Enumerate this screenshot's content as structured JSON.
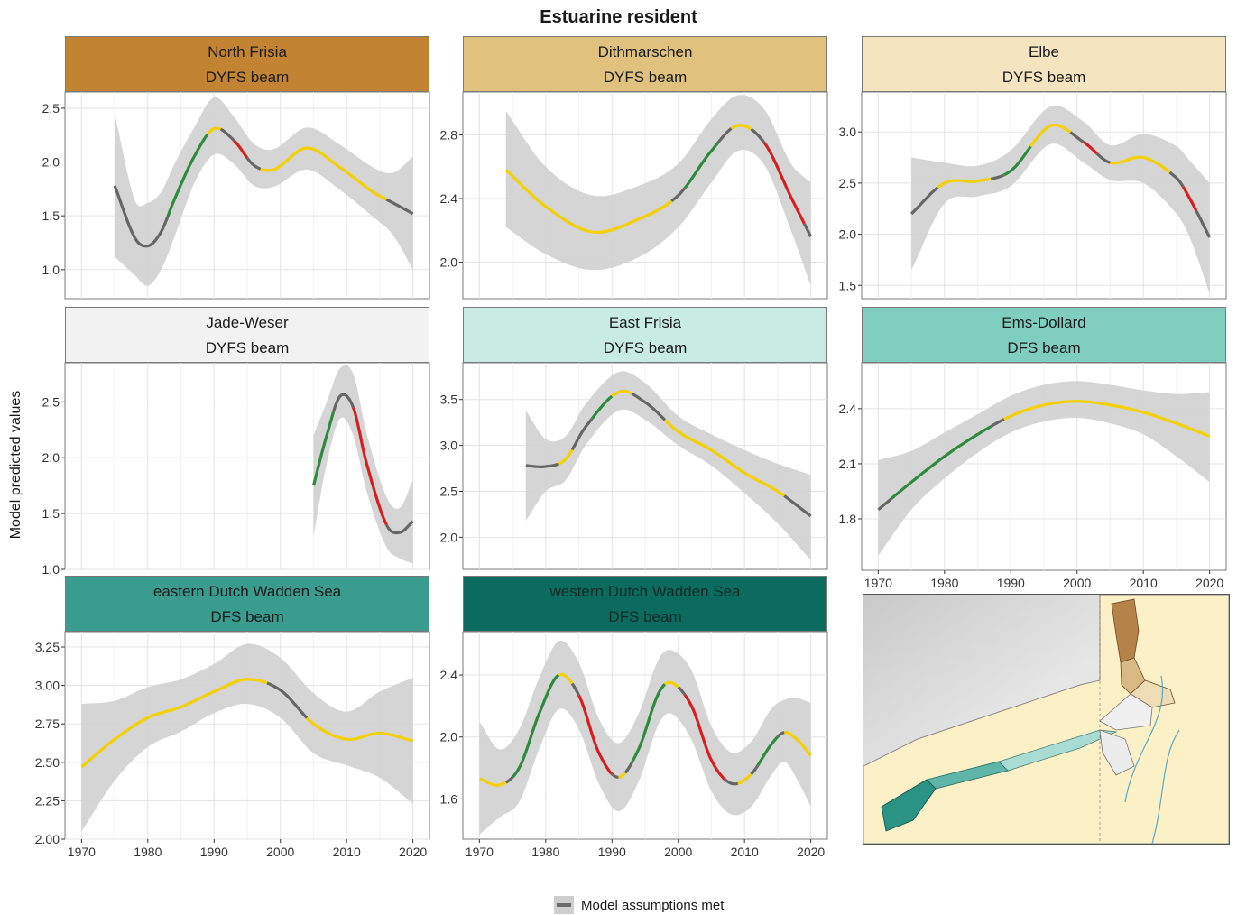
{
  "figure": {
    "title": "Estuarine resident",
    "ylabel": "Model predicted values",
    "legend_label": "Model assumptions met",
    "colors": {
      "met": "#666666",
      "ribbon": "#d0d0d0",
      "yellow": "#f5d000",
      "green": "#2e8b3e",
      "red": "#d42020"
    }
  },
  "chart_data": [
    {
      "type": "line",
      "area": "North Frisia",
      "survey": "DYFS beam",
      "strip_color": "#c28332",
      "x_ticks": [],
      "y_ticks": [
        1.0,
        1.5,
        2.0,
        2.5
      ],
      "y_tick_labels": [
        "1.0",
        "1.5",
        "2.0",
        "2.5"
      ],
      "xlim": [
        1967.5,
        2022.5
      ],
      "ylim": [
        0.73,
        2.65
      ],
      "x": [
        1975,
        1978,
        1980,
        1982,
        1984,
        1987,
        1990,
        1993,
        1996,
        1999,
        2004,
        2009,
        2014,
        2017,
        2020
      ],
      "fit": [
        1.78,
        1.3,
        1.22,
        1.35,
        1.65,
        2.05,
        2.31,
        2.2,
        1.97,
        1.93,
        2.13,
        1.95,
        1.72,
        1.62,
        1.52
      ],
      "lower": [
        1.12,
        0.95,
        0.85,
        1.0,
        1.3,
        1.8,
        2.07,
        1.98,
        1.78,
        1.77,
        1.93,
        1.74,
        1.49,
        1.32,
        1.0
      ],
      "upper": [
        2.45,
        1.65,
        1.62,
        1.72,
        1.98,
        2.32,
        2.6,
        2.42,
        2.17,
        2.12,
        2.32,
        2.16,
        1.95,
        1.9,
        2.05
      ],
      "segments": [
        {
          "from": 1975,
          "to": 1983,
          "color": "met"
        },
        {
          "from": 1983,
          "to": 1989,
          "color": "green"
        },
        {
          "from": 1989,
          "to": 1991,
          "color": "yellow"
        },
        {
          "from": 1991,
          "to": 1993,
          "color": "met"
        },
        {
          "from": 1993,
          "to": 1995,
          "color": "red"
        },
        {
          "from": 1995,
          "to": 1997,
          "color": "met"
        },
        {
          "from": 1997,
          "to": 2016,
          "color": "yellow"
        },
        {
          "from": 2016,
          "to": 2020,
          "color": "met"
        }
      ]
    },
    {
      "type": "line",
      "area": "Dithmarschen",
      "survey": "DYFS beam",
      "strip_color": "#e0c27e",
      "x_ticks": [],
      "y_ticks": [
        2.0,
        2.4,
        2.8
      ],
      "y_tick_labels": [
        "2.0",
        "2.4",
        "2.8"
      ],
      "xlim": [
        1967.5,
        2022.5
      ],
      "ylim": [
        1.77,
        3.07
      ],
      "x": [
        1974,
        1980,
        1987,
        1994,
        2000,
        2005,
        2009,
        2013,
        2017,
        2020
      ],
      "fit": [
        2.58,
        2.35,
        2.19,
        2.27,
        2.42,
        2.7,
        2.86,
        2.75,
        2.41,
        2.16
      ],
      "lower": [
        2.22,
        2.05,
        1.95,
        2.03,
        2.22,
        2.5,
        2.7,
        2.61,
        2.2,
        1.85
      ],
      "upper": [
        2.95,
        2.6,
        2.42,
        2.48,
        2.62,
        2.9,
        3.05,
        2.96,
        2.62,
        2.5
      ],
      "segments": [
        {
          "from": 1974,
          "to": 1999,
          "color": "yellow"
        },
        {
          "from": 1999,
          "to": 2001,
          "color": "met"
        },
        {
          "from": 2001,
          "to": 2006,
          "color": "green"
        },
        {
          "from": 2006,
          "to": 2008,
          "color": "met"
        },
        {
          "from": 2008,
          "to": 2011,
          "color": "yellow"
        },
        {
          "from": 2011,
          "to": 2013,
          "color": "met"
        },
        {
          "from": 2013,
          "to": 2019,
          "color": "red"
        },
        {
          "from": 2019,
          "to": 2020,
          "color": "met"
        }
      ]
    },
    {
      "type": "line",
      "area": "Elbe",
      "survey": "DYFS beam",
      "strip_color": "#f4e4c0",
      "x_ticks": [],
      "y_ticks": [
        1.5,
        2.0,
        2.5,
        3.0
      ],
      "y_tick_labels": [
        "1.5",
        "2.0",
        "2.5",
        "3.0"
      ],
      "xlim": [
        1967.5,
        2022.5
      ],
      "ylim": [
        1.37,
        3.39
      ],
      "x": [
        1975,
        1980,
        1985,
        1990,
        1996,
        2001,
        2005,
        2010,
        2015,
        2017,
        2020
      ],
      "fit": [
        2.2,
        2.5,
        2.52,
        2.62,
        3.06,
        2.9,
        2.7,
        2.75,
        2.55,
        2.35,
        1.97
      ],
      "lower": [
        1.65,
        2.3,
        2.37,
        2.47,
        2.88,
        2.7,
        2.53,
        2.5,
        2.2,
        1.97,
        1.42
      ],
      "upper": [
        2.75,
        2.7,
        2.67,
        2.82,
        3.25,
        3.1,
        2.87,
        2.98,
        2.86,
        2.72,
        2.5
      ],
      "segments": [
        {
          "from": 1975,
          "to": 1979,
          "color": "met"
        },
        {
          "from": 1979,
          "to": 1987,
          "color": "yellow"
        },
        {
          "from": 1987,
          "to": 1989,
          "color": "met"
        },
        {
          "from": 1989,
          "to": 1993,
          "color": "green"
        },
        {
          "from": 1993,
          "to": 1999,
          "color": "yellow"
        },
        {
          "from": 1999,
          "to": 2001,
          "color": "met"
        },
        {
          "from": 2001,
          "to": 2003,
          "color": "red"
        },
        {
          "from": 2003,
          "to": 2005,
          "color": "met"
        },
        {
          "from": 2005,
          "to": 2014,
          "color": "yellow"
        },
        {
          "from": 2014,
          "to": 2016,
          "color": "met"
        },
        {
          "from": 2016,
          "to": 2018,
          "color": "red"
        },
        {
          "from": 2018,
          "to": 2020,
          "color": "met"
        }
      ]
    },
    {
      "type": "line",
      "area": "Jade-Weser",
      "survey": "DYFS beam",
      "strip_color": "#f2f2f2",
      "x_ticks": [],
      "y_ticks": [
        1.0,
        1.5,
        2.0,
        2.5
      ],
      "y_tick_labels": [
        "1.0",
        "1.5",
        "2.0",
        "2.5"
      ],
      "xlim": [
        1967.5,
        2022.5
      ],
      "ylim": [
        1.0,
        2.85
      ],
      "x": [
        2005,
        2007,
        2009,
        2011,
        2013,
        2016,
        2018,
        2020
      ],
      "fit": [
        1.75,
        2.2,
        2.55,
        2.45,
        1.95,
        1.4,
        1.33,
        1.43
      ],
      "lower": [
        1.3,
        1.95,
        2.35,
        2.2,
        1.7,
        1.2,
        1.1,
        1.05
      ],
      "upper": [
        2.2,
        2.5,
        2.8,
        2.75,
        2.22,
        1.65,
        1.55,
        1.8
      ],
      "segments": [
        {
          "from": 2005,
          "to": 2008,
          "color": "green"
        },
        {
          "from": 2008,
          "to": 2011,
          "color": "met"
        },
        {
          "from": 2011,
          "to": 2016,
          "color": "red"
        },
        {
          "from": 2016,
          "to": 2020,
          "color": "met"
        }
      ]
    },
    {
      "type": "line",
      "area": "East Frisia",
      "survey": "DYFS beam",
      "strip_color": "#c8ebe4",
      "x_ticks": [],
      "y_ticks": [
        2.0,
        2.5,
        3.0,
        3.5
      ],
      "y_tick_labels": [
        "2.0",
        "2.5",
        "3.0",
        "3.5"
      ],
      "xlim": [
        1967.5,
        2022.5
      ],
      "ylim": [
        1.65,
        3.9
      ],
      "x": [
        1977,
        1980,
        1983,
        1986,
        1991,
        1995,
        2000,
        2005,
        2010,
        2015,
        2020
      ],
      "fit": [
        2.78,
        2.77,
        2.85,
        3.2,
        3.58,
        3.47,
        3.15,
        2.95,
        2.7,
        2.5,
        2.23
      ],
      "lower": [
        2.18,
        2.5,
        2.62,
        3.0,
        3.38,
        3.28,
        3.0,
        2.78,
        2.48,
        2.15,
        1.75
      ],
      "upper": [
        3.38,
        3.07,
        3.1,
        3.45,
        3.8,
        3.68,
        3.32,
        3.12,
        2.95,
        2.8,
        2.68
      ],
      "segments": [
        {
          "from": 1977,
          "to": 1982,
          "color": "met"
        },
        {
          "from": 1982,
          "to": 1984,
          "color": "yellow"
        },
        {
          "from": 1984,
          "to": 1987,
          "color": "met"
        },
        {
          "from": 1987,
          "to": 1990,
          "color": "green"
        },
        {
          "from": 1990,
          "to": 1993,
          "color": "yellow"
        },
        {
          "from": 1993,
          "to": 1998,
          "color": "met"
        },
        {
          "from": 1998,
          "to": 2016,
          "color": "yellow"
        },
        {
          "from": 2016,
          "to": 2020,
          "color": "met"
        }
      ]
    },
    {
      "type": "line",
      "area": "Ems-Dollard",
      "survey": "DFS beam",
      "strip_color": "#7fcebf",
      "x_ticks": [
        1970,
        1980,
        1990,
        2000,
        2010,
        2020
      ],
      "y_ticks": [
        1.8,
        2.1,
        2.4
      ],
      "y_tick_labels": [
        "1.8",
        "2.1",
        "2.4"
      ],
      "xlim": [
        1967.5,
        2022.5
      ],
      "ylim": [
        1.52,
        2.65
      ],
      "x": [
        1970,
        1975,
        1980,
        1985,
        1990,
        1995,
        2000,
        2005,
        2010,
        2015,
        2020
      ],
      "fit": [
        1.85,
        2.0,
        2.14,
        2.26,
        2.36,
        2.42,
        2.44,
        2.42,
        2.38,
        2.32,
        2.25
      ],
      "lower": [
        1.6,
        1.85,
        2.02,
        2.16,
        2.27,
        2.33,
        2.35,
        2.32,
        2.26,
        2.14,
        2.0
      ],
      "upper": [
        2.12,
        2.17,
        2.27,
        2.37,
        2.47,
        2.53,
        2.55,
        2.53,
        2.5,
        2.48,
        2.49
      ],
      "segments": [
        {
          "from": 1970,
          "to": 1972,
          "color": "met"
        },
        {
          "from": 1972,
          "to": 1987,
          "color": "green"
        },
        {
          "from": 1987,
          "to": 1989,
          "color": "met"
        },
        {
          "from": 1989,
          "to": 2020,
          "color": "yellow"
        }
      ]
    },
    {
      "type": "line",
      "area": "eastern Dutch Wadden Sea",
      "survey": "DFS beam",
      "strip_color": "#3a9b8f",
      "x_ticks": [
        1970,
        1980,
        1990,
        2000,
        2010,
        2020
      ],
      "y_ticks": [
        2.0,
        2.25,
        2.5,
        2.75,
        3.0,
        3.25
      ],
      "y_tick_labels": [
        "2.00",
        "2.25",
        "2.50",
        "2.75",
        "3.00",
        "3.25"
      ],
      "xlim": [
        1967.5,
        2022.5
      ],
      "ylim": [
        2.0,
        3.35
      ],
      "x": [
        1970,
        1975,
        1980,
        1985,
        1990,
        1995,
        2000,
        2005,
        2010,
        2015,
        2020
      ],
      "fit": [
        2.47,
        2.65,
        2.79,
        2.86,
        2.96,
        3.04,
        2.97,
        2.75,
        2.65,
        2.69,
        2.64
      ],
      "lower": [
        2.05,
        2.38,
        2.6,
        2.7,
        2.82,
        2.88,
        2.79,
        2.56,
        2.48,
        2.4,
        2.23
      ],
      "upper": [
        2.88,
        2.9,
        2.99,
        3.04,
        3.14,
        3.27,
        3.18,
        2.95,
        2.83,
        2.96,
        3.05
      ],
      "segments": [
        {
          "from": 1970,
          "to": 1998,
          "color": "yellow"
        },
        {
          "from": 1998,
          "to": 2004,
          "color": "met"
        },
        {
          "from": 2004,
          "to": 2020,
          "color": "yellow"
        }
      ]
    },
    {
      "type": "line",
      "area": "western Dutch Wadden Sea",
      "survey": "DFS beam",
      "strip_color": "#0c6b5f",
      "x_ticks": [
        1970,
        1980,
        1990,
        2000,
        2010,
        2020
      ],
      "y_ticks": [
        1.6,
        2.0,
        2.4
      ],
      "y_tick_labels": [
        "1.6",
        "2.0",
        "2.4"
      ],
      "xlim": [
        1967.5,
        2022.5
      ],
      "ylim": [
        1.34,
        2.68
      ],
      "x": [
        1970,
        1973,
        1976,
        1979,
        1982,
        1985,
        1988,
        1991,
        1994,
        1997,
        1999,
        2002,
        2005,
        2008,
        2011,
        2014,
        2016,
        2018,
        2020
      ],
      "fit": [
        1.73,
        1.69,
        1.8,
        2.15,
        2.4,
        2.27,
        1.9,
        1.74,
        1.92,
        2.28,
        2.35,
        2.2,
        1.85,
        1.7,
        1.76,
        1.95,
        2.03,
        1.98,
        1.88
      ],
      "lower": [
        1.37,
        1.48,
        1.58,
        1.92,
        2.18,
        2.05,
        1.7,
        1.52,
        1.71,
        2.08,
        2.15,
        1.98,
        1.65,
        1.5,
        1.55,
        1.75,
        1.84,
        1.72,
        1.55
      ],
      "upper": [
        2.1,
        1.92,
        2.05,
        2.38,
        2.62,
        2.48,
        2.12,
        1.96,
        2.15,
        2.5,
        2.56,
        2.43,
        2.07,
        1.9,
        1.97,
        2.18,
        2.24,
        2.25,
        2.22
      ],
      "segments": [
        {
          "from": 1970,
          "to": 1974,
          "color": "yellow"
        },
        {
          "from": 1974,
          "to": 1975,
          "color": "met"
        },
        {
          "from": 1975,
          "to": 1982,
          "color": "green"
        },
        {
          "from": 1982,
          "to": 1984,
          "color": "yellow"
        },
        {
          "from": 1984,
          "to": 1985,
          "color": "met"
        },
        {
          "from": 1985,
          "to": 1990,
          "color": "red"
        },
        {
          "from": 1990,
          "to": 1991,
          "color": "met"
        },
        {
          "from": 1991,
          "to": 1992,
          "color": "yellow"
        },
        {
          "from": 1992,
          "to": 1993,
          "color": "met"
        },
        {
          "from": 1993,
          "to": 1998,
          "color": "green"
        },
        {
          "from": 1998,
          "to": 2000,
          "color": "yellow"
        },
        {
          "from": 2000,
          "to": 2001,
          "color": "met"
        },
        {
          "from": 2001,
          "to": 2007,
          "color": "red"
        },
        {
          "from": 2007,
          "to": 2009,
          "color": "met"
        },
        {
          "from": 2009,
          "to": 2011,
          "color": "yellow"
        },
        {
          "from": 2011,
          "to": 2012,
          "color": "met"
        },
        {
          "from": 2012,
          "to": 2015,
          "color": "green"
        },
        {
          "from": 2015,
          "to": 2016,
          "color": "met"
        },
        {
          "from": 2016,
          "to": 2020,
          "color": "yellow"
        }
      ]
    }
  ]
}
